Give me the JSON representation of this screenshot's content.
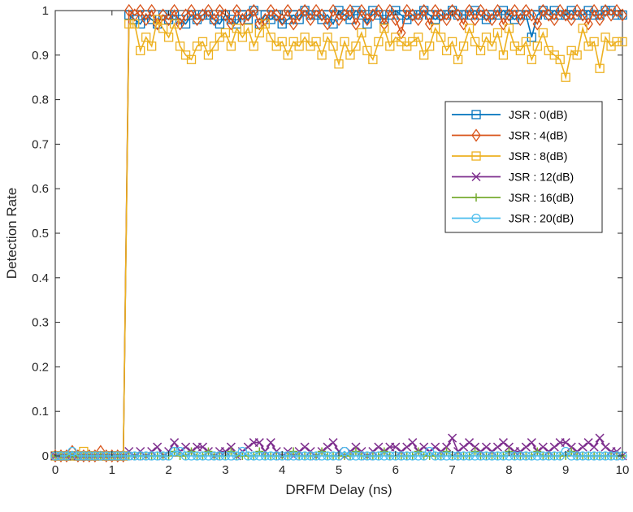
{
  "chart_data": {
    "type": "line",
    "xlabel": "DRFM Delay (ns)",
    "ylabel": "Detection Rate",
    "xlim": [
      0,
      10
    ],
    "ylim": [
      0,
      1
    ],
    "xticks": [
      "0",
      "1",
      "2",
      "3",
      "4",
      "5",
      "6",
      "7",
      "8",
      "9",
      "10"
    ],
    "yticks": [
      "0",
      "0.1",
      "0.2",
      "0.3",
      "0.4",
      "0.5",
      "0.6",
      "0.7",
      "0.8",
      "0.9",
      "1"
    ],
    "grid": false,
    "legend_position": "right",
    "series": [
      {
        "name": "JSR : 0(dB)",
        "color": "#0072BD",
        "marker": "square",
        "x": [
          0,
          0.1,
          0.2,
          0.3,
          0.4,
          0.5,
          0.6,
          0.7,
          0.8,
          0.9,
          1,
          1.1,
          1.2,
          1.3,
          1.4,
          1.5,
          1.6,
          1.7,
          1.8,
          1.9,
          2,
          2.1,
          2.2,
          2.3,
          2.4,
          2.5,
          2.6,
          2.7,
          2.8,
          2.9,
          3,
          3.1,
          3.2,
          3.3,
          3.4,
          3.5,
          3.6,
          3.7,
          3.8,
          3.9,
          4,
          4.1,
          4.2,
          4.3,
          4.4,
          4.5,
          4.6,
          4.7,
          4.8,
          4.9,
          5,
          5.1,
          5.2,
          5.3,
          5.4,
          5.5,
          5.6,
          5.7,
          5.8,
          5.9,
          6,
          6.1,
          6.2,
          6.3,
          6.4,
          6.5,
          6.6,
          6.7,
          6.8,
          6.9,
          7,
          7.1,
          7.2,
          7.3,
          7.4,
          7.5,
          7.6,
          7.7,
          7.8,
          7.9,
          8,
          8.1,
          8.2,
          8.3,
          8.4,
          8.5,
          8.6,
          8.7,
          8.8,
          8.9,
          9,
          9.1,
          9.2,
          9.3,
          9.4,
          9.5,
          9.6,
          9.7,
          9.8,
          9.9,
          10
        ],
        "y": [
          0,
          0,
          0,
          0,
          0,
          0,
          0,
          0,
          0,
          0,
          0,
          0,
          0,
          0.99,
          0.98,
          0.97,
          0.99,
          0.98,
          0.97,
          0.99,
          0.98,
          0.99,
          0.98,
          0.97,
          0.99,
          0.98,
          0.99,
          0.99,
          0.98,
          0.97,
          0.99,
          0.98,
          0.97,
          0.99,
          0.98,
          1,
          0.97,
          0.99,
          0.98,
          0.99,
          0.97,
          0.98,
          0.99,
          0.98,
          1,
          0.99,
          0.99,
          0.98,
          0.99,
          0.97,
          1,
          0.99,
          0.98,
          1,
          0.99,
          0.97,
          1,
          0.99,
          0.98,
          0.99,
          1,
          0.99,
          0.98,
          0.99,
          0.99,
          1,
          0.99,
          0.98,
          0.99,
          0.99,
          1,
          0.99,
          0.99,
          0.99,
          1,
          0.99,
          0.98,
          0.99,
          0.99,
          1,
          0.99,
          0.98,
          0.99,
          0.99,
          0.94,
          0.99,
          1,
          0.99,
          1,
          0.99,
          0.99,
          1,
          0.99,
          0.99,
          1,
          0.99,
          0.99,
          1,
          1,
          0.99,
          0.99
        ]
      },
      {
        "name": "JSR : 4(dB)",
        "color": "#D95319",
        "marker": "diamond",
        "x": [
          0,
          0.1,
          0.2,
          0.3,
          0.4,
          0.5,
          0.6,
          0.7,
          0.8,
          0.9,
          1,
          1.1,
          1.2,
          1.3,
          1.4,
          1.5,
          1.6,
          1.7,
          1.8,
          1.9,
          2,
          2.1,
          2.2,
          2.3,
          2.4,
          2.5,
          2.6,
          2.7,
          2.8,
          2.9,
          3,
          3.1,
          3.2,
          3.3,
          3.4,
          3.5,
          3.6,
          3.7,
          3.8,
          3.9,
          4,
          4.1,
          4.2,
          4.3,
          4.4,
          4.5,
          4.6,
          4.7,
          4.8,
          4.9,
          5,
          5.1,
          5.2,
          5.3,
          5.4,
          5.5,
          5.6,
          5.7,
          5.8,
          5.9,
          6,
          6.1,
          6.2,
          6.3,
          6.4,
          6.5,
          6.6,
          6.7,
          6.8,
          6.9,
          7,
          7.1,
          7.2,
          7.3,
          7.4,
          7.5,
          7.6,
          7.7,
          7.8,
          7.9,
          8,
          8.1,
          8.2,
          8.3,
          8.4,
          8.5,
          8.6,
          8.7,
          8.8,
          8.9,
          9,
          9.1,
          9.2,
          9.3,
          9.4,
          9.5,
          9.6,
          9.7,
          9.8,
          9.9,
          10
        ],
        "y": [
          0,
          0,
          0,
          0.01,
          0,
          0,
          0,
          0,
          0.01,
          0,
          0,
          0,
          0,
          1,
          0.99,
          1,
          0.98,
          1,
          0.97,
          0.99,
          0.98,
          1,
          0.97,
          0.99,
          1,
          0.98,
          0.99,
          1,
          0.98,
          1,
          0.99,
          0.97,
          1,
          0.98,
          0.99,
          1,
          0.97,
          0.98,
          1,
          0.99,
          0.98,
          1,
          0.97,
          0.99,
          1,
          0.98,
          1,
          0.99,
          0.97,
          1,
          0.98,
          0.99,
          1,
          0.97,
          1,
          0.98,
          0.99,
          1,
          0.97,
          1,
          0.98,
          0.95,
          1,
          0.99,
          0.98,
          1,
          0.97,
          1,
          0.99,
          0.98,
          1,
          0.99,
          0.97,
          1,
          0.98,
          1,
          0.99,
          0.98,
          1,
          0.97,
          0.99,
          1,
          0.98,
          1,
          0.99,
          0.97,
          1,
          0.99,
          0.98,
          1,
          0.99,
          0.98,
          1,
          0.99,
          0.97,
          1,
          0.98,
          1,
          0.99,
          1,
          0.99
        ]
      },
      {
        "name": "JSR : 8(dB)",
        "color": "#EDB120",
        "marker": "square",
        "x": [
          0,
          0.1,
          0.2,
          0.3,
          0.4,
          0.5,
          0.6,
          0.7,
          0.8,
          0.9,
          1,
          1.1,
          1.2,
          1.3,
          1.4,
          1.5,
          1.6,
          1.7,
          1.8,
          1.9,
          2,
          2.1,
          2.2,
          2.3,
          2.4,
          2.5,
          2.6,
          2.7,
          2.8,
          2.9,
          3,
          3.1,
          3.2,
          3.3,
          3.4,
          3.5,
          3.6,
          3.7,
          3.8,
          3.9,
          4,
          4.1,
          4.2,
          4.3,
          4.4,
          4.5,
          4.6,
          4.7,
          4.8,
          4.9,
          5,
          5.1,
          5.2,
          5.3,
          5.4,
          5.5,
          5.6,
          5.7,
          5.8,
          5.9,
          6,
          6.1,
          6.2,
          6.3,
          6.4,
          6.5,
          6.6,
          6.7,
          6.8,
          6.9,
          7,
          7.1,
          7.2,
          7.3,
          7.4,
          7.5,
          7.6,
          7.7,
          7.8,
          7.9,
          8,
          8.1,
          8.2,
          8.3,
          8.4,
          8.5,
          8.6,
          8.7,
          8.8,
          8.9,
          9,
          9.1,
          9.2,
          9.3,
          9.4,
          9.5,
          9.6,
          9.7,
          9.8,
          9.9,
          10
        ],
        "y": [
          0,
          0,
          0,
          0,
          0,
          0.01,
          0,
          0,
          0,
          0,
          0,
          0,
          0,
          0.97,
          0.97,
          0.91,
          0.94,
          0.92,
          0.98,
          0.96,
          0.94,
          0.97,
          0.92,
          0.9,
          0.89,
          0.92,
          0.93,
          0.9,
          0.92,
          0.94,
          0.95,
          0.92,
          0.96,
          0.94,
          0.96,
          0.92,
          0.95,
          0.97,
          0.94,
          0.92,
          0.93,
          0.9,
          0.93,
          0.92,
          0.94,
          0.92,
          0.93,
          0.9,
          0.94,
          0.92,
          0.88,
          0.93,
          0.9,
          0.92,
          0.95,
          0.91,
          0.89,
          0.93,
          0.96,
          0.92,
          0.94,
          0.93,
          0.92,
          0.93,
          0.94,
          0.9,
          0.92,
          0.96,
          0.94,
          0.91,
          0.93,
          0.89,
          0.92,
          0.96,
          0.93,
          0.91,
          0.94,
          0.92,
          0.95,
          0.9,
          0.96,
          0.92,
          0.91,
          0.93,
          0.89,
          0.92,
          0.95,
          0.91,
          0.9,
          0.89,
          0.85,
          0.91,
          0.9,
          0.96,
          0.92,
          0.93,
          0.87,
          0.94,
          0.92,
          0.93,
          0.93
        ]
      },
      {
        "name": "JSR : 12(dB)",
        "color": "#7E2F8E",
        "marker": "x",
        "x": [
          0,
          0.1,
          0.2,
          0.3,
          0.4,
          0.5,
          0.6,
          0.7,
          0.8,
          0.9,
          1,
          1.1,
          1.2,
          1.3,
          1.4,
          1.5,
          1.6,
          1.7,
          1.8,
          1.9,
          2,
          2.1,
          2.2,
          2.3,
          2.4,
          2.5,
          2.6,
          2.7,
          2.8,
          2.9,
          3,
          3.1,
          3.2,
          3.3,
          3.4,
          3.5,
          3.6,
          3.7,
          3.8,
          3.9,
          4,
          4.1,
          4.2,
          4.3,
          4.4,
          4.5,
          4.6,
          4.7,
          4.8,
          4.9,
          5,
          5.1,
          5.2,
          5.3,
          5.4,
          5.5,
          5.6,
          5.7,
          5.8,
          5.9,
          6,
          6.1,
          6.2,
          6.3,
          6.4,
          6.5,
          6.6,
          6.7,
          6.8,
          6.9,
          7,
          7.1,
          7.2,
          7.3,
          7.4,
          7.5,
          7.6,
          7.7,
          7.8,
          7.9,
          8,
          8.1,
          8.2,
          8.3,
          8.4,
          8.5,
          8.6,
          8.7,
          8.8,
          8.9,
          9,
          9.1,
          9.2,
          9.3,
          9.4,
          9.5,
          9.6,
          9.7,
          9.8,
          9.9,
          10
        ],
        "y": [
          0,
          0,
          0,
          0,
          0,
          0,
          0,
          0,
          0,
          0,
          0,
          0,
          0,
          0.01,
          0,
          0.01,
          0,
          0.01,
          0.02,
          0,
          0.01,
          0.03,
          0.01,
          0.02,
          0.01,
          0.02,
          0.02,
          0.01,
          0,
          0.01,
          0.01,
          0.02,
          0,
          0.01,
          0.02,
          0.03,
          0.03,
          0.01,
          0.03,
          0.01,
          0,
          0.01,
          0,
          0.01,
          0.02,
          0.01,
          0,
          0.01,
          0.02,
          0.03,
          0.01,
          0,
          0.01,
          0.02,
          0.01,
          0,
          0.01,
          0.02,
          0.01,
          0.02,
          0.02,
          0.01,
          0.02,
          0.03,
          0.01,
          0.02,
          0.01,
          0.02,
          0.01,
          0.02,
          0.04,
          0.01,
          0.02,
          0.03,
          0.02,
          0.01,
          0.02,
          0.01,
          0.02,
          0.03,
          0.02,
          0.01,
          0.01,
          0.02,
          0.03,
          0.01,
          0.02,
          0.01,
          0.02,
          0.03,
          0.03,
          0.02,
          0.01,
          0.02,
          0.03,
          0.02,
          0.04,
          0.02,
          0.01,
          0.01,
          0
        ]
      },
      {
        "name": "JSR : 16(dB)",
        "color": "#77AC30",
        "marker": "plus",
        "x": [
          0,
          0.1,
          0.2,
          0.3,
          0.4,
          0.5,
          0.6,
          0.7,
          0.8,
          0.9,
          1,
          1.1,
          1.2,
          1.3,
          1.4,
          1.5,
          1.6,
          1.7,
          1.8,
          1.9,
          2,
          2.1,
          2.2,
          2.3,
          2.4,
          2.5,
          2.6,
          2.7,
          2.8,
          2.9,
          3,
          3.1,
          3.2,
          3.3,
          3.4,
          3.5,
          3.6,
          3.7,
          3.8,
          3.9,
          4,
          4.1,
          4.2,
          4.3,
          4.4,
          4.5,
          4.6,
          4.7,
          4.8,
          4.9,
          5,
          5.1,
          5.2,
          5.3,
          5.4,
          5.5,
          5.6,
          5.7,
          5.8,
          5.9,
          6,
          6.1,
          6.2,
          6.3,
          6.4,
          6.5,
          6.6,
          6.7,
          6.8,
          6.9,
          7,
          7.1,
          7.2,
          7.3,
          7.4,
          7.5,
          7.6,
          7.7,
          7.8,
          7.9,
          8,
          8.1,
          8.2,
          8.3,
          8.4,
          8.5,
          8.6,
          8.7,
          8.8,
          8.9,
          9,
          9.1,
          9.2,
          9.3,
          9.4,
          9.5,
          9.6,
          9.7,
          9.8,
          9.9,
          10
        ],
        "y": [
          0,
          0,
          0,
          0,
          0,
          0,
          0,
          0,
          0,
          0,
          0,
          0,
          0,
          0,
          0,
          0,
          0,
          0,
          0,
          0,
          0,
          0.01,
          0,
          0,
          0.01,
          0,
          0,
          0.01,
          0,
          0,
          0,
          0.01,
          0,
          0,
          0,
          0,
          0.01,
          0,
          0,
          0,
          0,
          0,
          0.01,
          0,
          0,
          0,
          0,
          0.01,
          0,
          0,
          0,
          0,
          0,
          0.01,
          0,
          0,
          0,
          0,
          0.01,
          0,
          0,
          0,
          0,
          0,
          0.01,
          0,
          0,
          0,
          0,
          0.01,
          0,
          0,
          0,
          0,
          0.01,
          0,
          0,
          0,
          0,
          0,
          0.01,
          0,
          0,
          0,
          0,
          0.01,
          0,
          0,
          0,
          0,
          0,
          0.01,
          0,
          0,
          0,
          0,
          0,
          0,
          0,
          0,
          0
        ]
      },
      {
        "name": "JSR : 20(dB)",
        "color": "#4DBEEE",
        "marker": "circle",
        "x": [
          0,
          0.1,
          0.2,
          0.3,
          0.4,
          0.5,
          0.6,
          0.7,
          0.8,
          0.9,
          1,
          1.1,
          1.2,
          1.3,
          1.4,
          1.5,
          1.6,
          1.7,
          1.8,
          1.9,
          2,
          2.1,
          2.2,
          2.3,
          2.4,
          2.5,
          2.6,
          2.7,
          2.8,
          2.9,
          3,
          3.1,
          3.2,
          3.3,
          3.4,
          3.5,
          3.6,
          3.7,
          3.8,
          3.9,
          4,
          4.1,
          4.2,
          4.3,
          4.4,
          4.5,
          4.6,
          4.7,
          4.8,
          4.9,
          5,
          5.1,
          5.2,
          5.3,
          5.4,
          5.5,
          5.6,
          5.7,
          5.8,
          5.9,
          6,
          6.1,
          6.2,
          6.3,
          6.4,
          6.5,
          6.6,
          6.7,
          6.8,
          6.9,
          7,
          7.1,
          7.2,
          7.3,
          7.4,
          7.5,
          7.6,
          7.7,
          7.8,
          7.9,
          8,
          8.1,
          8.2,
          8.3,
          8.4,
          8.5,
          8.6,
          8.7,
          8.8,
          8.9,
          9,
          9.1,
          9.2,
          9.3,
          9.4,
          9.5,
          9.6,
          9.7,
          9.8,
          9.9,
          10
        ],
        "y": [
          0,
          0,
          0,
          0.01,
          0,
          0,
          0,
          0,
          0,
          0,
          0,
          0,
          0,
          0,
          0,
          0,
          0,
          0,
          0,
          0,
          0,
          0.01,
          0.01,
          0,
          0,
          0,
          0,
          0,
          0,
          0,
          0,
          0,
          0,
          0.01,
          0,
          0,
          0,
          0,
          0,
          0,
          0,
          0,
          0,
          0,
          0,
          0,
          0,
          0,
          0,
          0,
          0,
          0.01,
          0,
          0,
          0,
          0,
          0,
          0,
          0,
          0,
          0,
          0,
          0,
          0,
          0,
          0,
          0.01,
          0,
          0,
          0,
          0,
          0,
          0,
          0,
          0,
          0,
          0,
          0,
          0,
          0,
          0,
          0,
          0,
          0,
          0,
          0,
          0,
          0,
          0,
          0,
          0.01,
          0,
          0,
          0,
          0,
          0,
          0,
          0,
          0,
          0,
          0
        ]
      }
    ]
  }
}
